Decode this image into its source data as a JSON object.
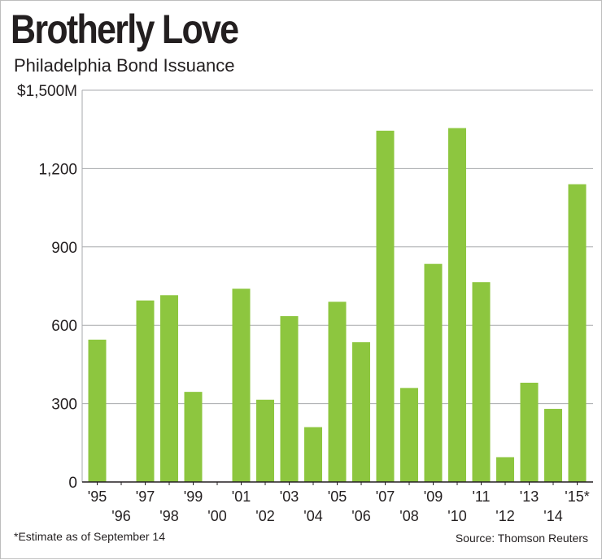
{
  "header": {
    "title": "Brotherly Love",
    "subtitle": "Philadelphia Bond Issuance"
  },
  "footer": {
    "footnote": "*Estimate as of September 14",
    "source": "Source: Thomson Reuters"
  },
  "colors": {
    "bar": "#8dc63f",
    "grid": "#a7a9ac",
    "axis": "#231f20"
  },
  "chart_data": {
    "type": "bar",
    "title": "Brotherly Love",
    "subtitle": "Philadelphia Bond Issuance",
    "ylabel": "",
    "xlabel": "",
    "ylim": [
      0,
      1500
    ],
    "y_ticks": [
      0,
      300,
      600,
      900,
      1200,
      1500
    ],
    "y_tick_labels": [
      "0",
      "300",
      "600",
      "900",
      "1,200",
      "$1,500M"
    ],
    "grid": true,
    "categories": [
      "'95",
      "'96",
      "'97",
      "'98",
      "'99",
      "'00",
      "'01",
      "'02",
      "'03",
      "'04",
      "'05",
      "'06",
      "'07",
      "'08",
      "'09",
      "'10",
      "'11",
      "'12",
      "'13",
      "'14",
      "'15*"
    ],
    "values": [
      545,
      0,
      695,
      715,
      345,
      0,
      740,
      315,
      635,
      210,
      690,
      535,
      1345,
      360,
      835,
      1355,
      765,
      95,
      380,
      280,
      1140
    ],
    "annotations": [
      "*Estimate as of September 14"
    ]
  }
}
